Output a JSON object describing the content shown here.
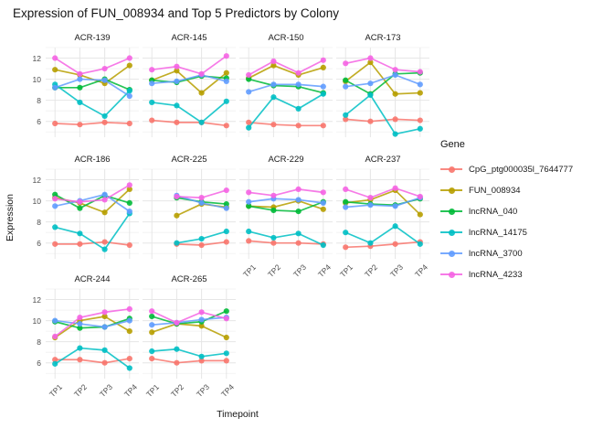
{
  "chart_data": {
    "type": "line",
    "title": "Expression of FUN_008934 and Top 5 Predictors by Colony",
    "xlabel": "Timepoint",
    "ylabel": "Expression",
    "legend_title": "Gene",
    "legend_position": "right",
    "grid": true,
    "x_categories": [
      "TP1",
      "TP2",
      "TP3",
      "TP4"
    ],
    "y_ticks": [
      6,
      8,
      10,
      12
    ],
    "y_minor_ticks": [
      5,
      7,
      9,
      11,
      13
    ],
    "ylim": [
      4.5,
      13.0
    ],
    "series": [
      {
        "name": "CpG_ptg000035l_7644777",
        "color": "#F8766D"
      },
      {
        "name": "FUN_008934",
        "color": "#B79F00"
      },
      {
        "name": "lncRNA_040",
        "color": "#00BA38"
      },
      {
        "name": "lncRNA_14175",
        "color": "#00BFC4"
      },
      {
        "name": "lncRNA_3700",
        "color": "#619CFF"
      },
      {
        "name": "lncRNA_4233",
        "color": "#F564E3"
      }
    ],
    "facets": [
      {
        "name": "ACR-139",
        "series_values": [
          [
            5.8,
            5.7,
            5.9,
            5.8
          ],
          [
            10.9,
            10.4,
            9.6,
            11.3
          ],
          [
            9.2,
            9.2,
            10.0,
            9.0
          ],
          [
            9.5,
            7.8,
            6.5,
            8.9
          ],
          [
            9.2,
            10.0,
            9.9,
            8.4
          ],
          [
            12.0,
            10.5,
            11.0,
            12.0
          ]
        ]
      },
      {
        "name": "ACR-145",
        "series_values": [
          [
            6.1,
            5.9,
            5.9,
            5.6
          ],
          [
            9.9,
            10.8,
            8.7,
            10.6
          ],
          [
            9.9,
            9.7,
            10.3,
            10.1
          ],
          [
            7.8,
            7.5,
            5.9,
            7.9
          ],
          [
            9.6,
            9.8,
            10.4,
            9.8
          ],
          [
            10.9,
            11.2,
            10.5,
            12.2
          ]
        ]
      },
      {
        "name": "ACR-150",
        "series_values": [
          [
            5.9,
            5.7,
            5.6,
            5.6
          ],
          [
            10.1,
            11.3,
            10.4,
            11.1
          ],
          [
            10.0,
            9.4,
            9.3,
            8.7
          ],
          [
            5.4,
            8.3,
            7.2,
            8.6
          ],
          [
            8.8,
            9.5,
            9.5,
            9.3
          ],
          [
            10.4,
            11.7,
            10.6,
            11.8
          ]
        ]
      },
      {
        "name": "ACR-173",
        "series_values": [
          [
            6.2,
            6.0,
            6.2,
            6.1
          ],
          [
            9.8,
            11.6,
            8.6,
            8.7
          ],
          [
            9.9,
            8.6,
            10.5,
            10.6
          ],
          [
            6.6,
            8.5,
            4.8,
            5.3
          ],
          [
            9.3,
            9.6,
            10.4,
            9.5
          ],
          [
            11.5,
            12.0,
            10.9,
            10.7
          ]
        ]
      },
      {
        "name": "ACR-186",
        "series_values": [
          [
            5.9,
            5.9,
            6.1,
            5.8
          ],
          [
            10.3,
            9.8,
            8.9,
            11.1
          ],
          [
            10.6,
            9.3,
            10.5,
            9.8
          ],
          [
            7.5,
            6.9,
            5.4,
            8.8
          ],
          [
            9.5,
            10.0,
            10.6,
            9.0
          ],
          [
            10.2,
            9.9,
            10.1,
            11.5
          ]
        ]
      },
      {
        "name": "ACR-225",
        "series_values": [
          [
            null,
            5.9,
            5.8,
            6.1
          ],
          [
            null,
            8.6,
            9.7,
            9.4
          ],
          [
            null,
            10.3,
            9.9,
            9.7
          ],
          [
            null,
            6.0,
            6.4,
            7.1
          ],
          [
            null,
            10.5,
            9.8,
            9.3
          ],
          [
            null,
            10.4,
            10.3,
            11.0
          ]
        ]
      },
      {
        "name": "ACR-229",
        "series_values": [
          [
            6.2,
            6.0,
            6.0,
            5.9
          ],
          [
            9.5,
            9.4,
            10.0,
            9.2
          ],
          [
            9.5,
            9.1,
            9.0,
            9.9
          ],
          [
            7.1,
            6.5,
            6.9,
            5.8
          ],
          [
            9.9,
            10.2,
            10.1,
            9.8
          ],
          [
            10.8,
            10.5,
            11.1,
            10.8
          ]
        ]
      },
      {
        "name": "ACR-237",
        "series_values": [
          [
            5.6,
            5.7,
            5.9,
            6.1
          ],
          [
            9.8,
            10.1,
            11.0,
            8.7
          ],
          [
            9.9,
            9.7,
            9.6,
            10.2
          ],
          [
            7.0,
            6.0,
            7.6,
            5.9
          ],
          [
            9.4,
            9.6,
            9.5,
            10.3
          ],
          [
            11.1,
            10.3,
            11.2,
            10.4
          ]
        ]
      },
      {
        "name": "ACR-244",
        "series_values": [
          [
            6.3,
            6.3,
            6.0,
            6.4
          ],
          [
            8.4,
            10.0,
            10.4,
            9.0
          ],
          [
            9.9,
            9.3,
            9.4,
            10.2
          ],
          [
            5.9,
            7.4,
            7.2,
            5.5
          ],
          [
            10.0,
            9.7,
            9.4,
            10.0
          ],
          [
            8.5,
            10.3,
            10.8,
            11.1
          ]
        ]
      },
      {
        "name": "ACR-265",
        "series_values": [
          [
            6.4,
            6.0,
            6.2,
            6.2
          ],
          [
            8.9,
            9.7,
            9.5,
            8.4
          ],
          [
            10.4,
            9.7,
            9.9,
            10.9
          ],
          [
            7.1,
            7.3,
            6.6,
            6.9
          ],
          [
            9.6,
            9.8,
            10.1,
            10.3
          ],
          [
            10.9,
            9.8,
            10.8,
            10.2
          ]
        ]
      }
    ]
  }
}
